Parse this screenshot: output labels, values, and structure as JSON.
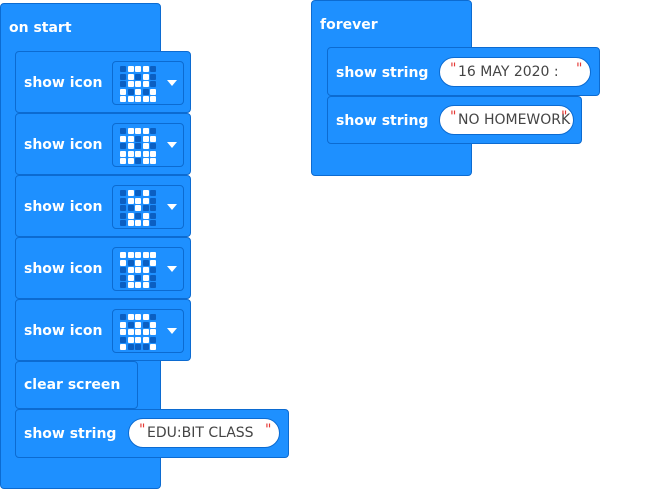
{
  "blocks": {
    "on_start": {
      "label": "on start"
    },
    "show_icon_label": "show icon",
    "icons": [
      [
        0,
        1,
        1,
        1,
        0,
        0,
        1,
        0,
        1,
        0,
        0,
        1,
        1,
        1,
        0,
        1,
        0,
        1,
        0,
        1,
        1,
        1,
        1,
        1,
        1
      ],
      [
        0,
        1,
        1,
        1,
        0,
        1,
        1,
        0,
        1,
        1,
        0,
        1,
        0,
        1,
        0,
        1,
        1,
        1,
        1,
        1,
        1,
        1,
        0,
        1,
        1
      ],
      [
        0,
        1,
        0,
        1,
        0,
        0,
        1,
        1,
        1,
        0,
        0,
        0,
        1,
        0,
        0,
        0,
        1,
        0,
        1,
        0,
        0,
        1,
        1,
        1,
        0
      ],
      [
        1,
        1,
        1,
        1,
        1,
        1,
        0,
        1,
        0,
        1,
        0,
        1,
        1,
        1,
        0,
        0,
        1,
        0,
        1,
        0,
        0,
        1,
        1,
        1,
        0
      ],
      [
        0,
        1,
        1,
        1,
        0,
        1,
        0,
        1,
        0,
        1,
        1,
        1,
        1,
        1,
        1,
        0,
        1,
        1,
        1,
        0,
        1,
        0,
        0,
        0,
        1
      ]
    ],
    "clear_screen": {
      "label": "clear screen"
    },
    "show_string_label": "show string",
    "start_string": {
      "value": "EDU:BIT CLASS "
    },
    "forever": {
      "label": "forever"
    },
    "forever_strings": [
      {
        "value": "16 MAY 2020 : "
      },
      {
        "value": "NO HOMEWORK"
      }
    ],
    "quote_char": "\""
  },
  "colors": {
    "block": "#1E90FF",
    "block_border": "#0C6BD1",
    "led_on": "#ffffff",
    "led_off": "#0B5FC2",
    "quote": "#E53935"
  },
  "icon_names": {
    "dropdown": "caret-down-icon"
  }
}
